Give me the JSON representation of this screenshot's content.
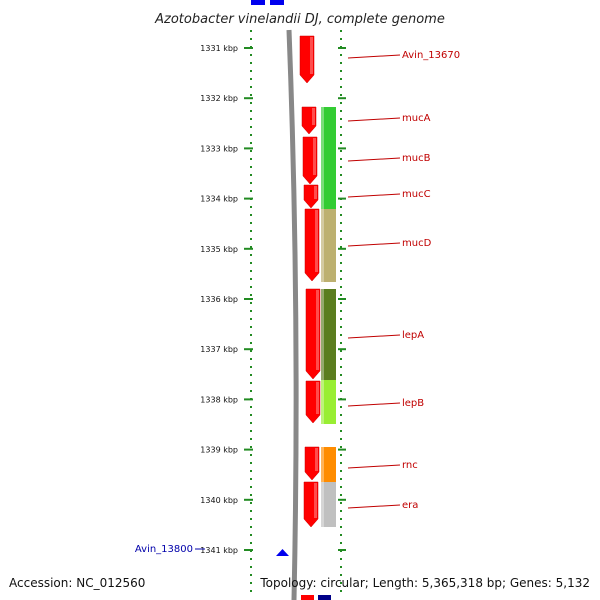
{
  "title": "Azotobacter vinelandii DJ, complete genome",
  "footer": {
    "accession": "Accession: NC_012560",
    "summary": "Topology: circular; Length: 5,365,318 bp; Genes: 5,132"
  },
  "colors": {
    "strand": "#ff0000",
    "dna": "#888888",
    "scale": "#228b22",
    "label": "#c00000",
    "nav": "#0000aa"
  },
  "ruler": {
    "unit": "kbp",
    "ticks": [
      "1331 kbp",
      "1332 kbp",
      "1333 kbp",
      "1334 kbp",
      "1335 kbp",
      "1336 kbp",
      "1337 kbp",
      "1338 kbp",
      "1339 kbp",
      "1340 kbp",
      "1341 kbp"
    ]
  },
  "genes": [
    {
      "label": "Avin_13670",
      "cog_color": "#ff0000",
      "has_cog": false
    },
    {
      "label": "mucA",
      "cog_color": "#33cc33",
      "has_cog": true
    },
    {
      "label": "mucB",
      "cog_color": "#33cc33",
      "has_cog": true
    },
    {
      "label": "mucC",
      "cog_color": "#33cc33",
      "has_cog": true
    },
    {
      "label": "mucD",
      "cog_color": "#bdb070",
      "has_cog": true
    },
    {
      "label": "lepA",
      "cog_color": "#5b7d1f",
      "has_cog": true
    },
    {
      "label": "lepB",
      "cog_color": "#99ee33",
      "has_cog": true
    },
    {
      "label": "rnc",
      "cog_color": "#ff8c00",
      "has_cog": true
    },
    {
      "label": "era",
      "cog_color": "#c0c0c0",
      "has_cog": true
    }
  ],
  "nav_label": "Avin_13800"
}
